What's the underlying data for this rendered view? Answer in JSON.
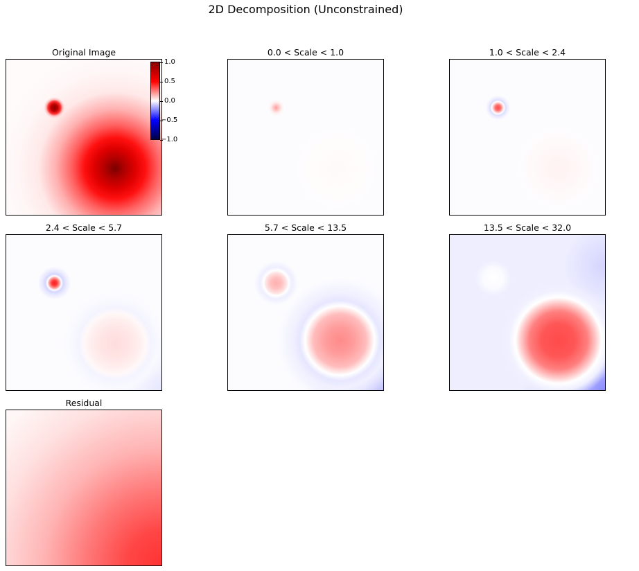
{
  "title": "2D Decomposition (Unconstrained)",
  "chart_data": {
    "type": "heatmap",
    "colormap": "seismic",
    "title": "2D Decomposition (Unconstrained)",
    "colorbar": {
      "vmin": -1.0,
      "vmax": 1.0,
      "tick_labels": [
        "1.0",
        "0.5",
        "0.0",
        "−0.5",
        "−1.0"
      ]
    },
    "panels": [
      {
        "title": "Original Image",
        "has_colorbar": true
      },
      {
        "title": "0.0 < Scale < 1.0"
      },
      {
        "title": "1.0 < Scale < 2.4"
      },
      {
        "title": "2.4 < Scale < 5.7"
      },
      {
        "title": "5.7 < Scale < 13.5"
      },
      {
        "title": "13.5 < Scale < 32.0"
      },
      {
        "title": "Residual"
      }
    ],
    "axes_ticks": "none"
  }
}
